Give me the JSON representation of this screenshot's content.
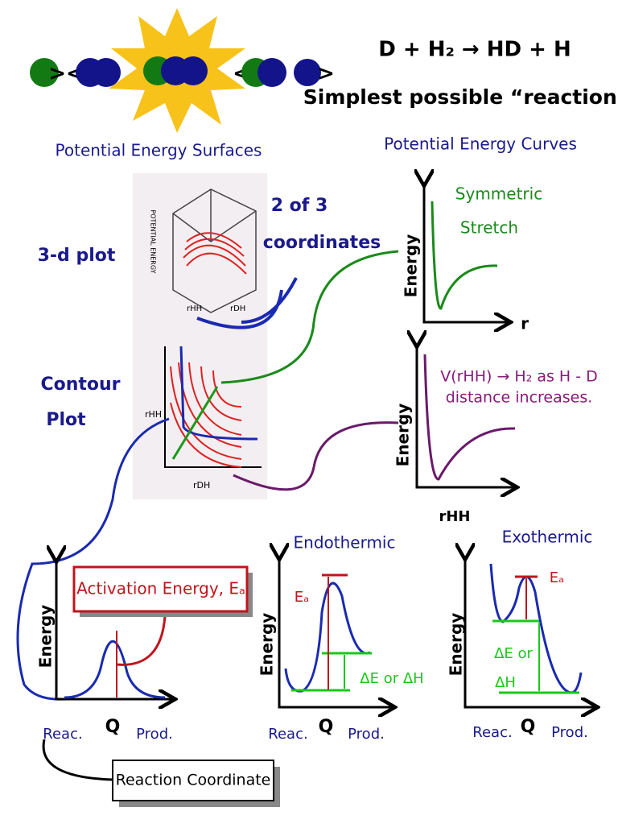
{
  "header": {
    "equation": "D + H₂ → HD + H",
    "subtitle": "Simplest possible “reaction”"
  },
  "surfaces": {
    "title": "Potential Energy Surfaces",
    "plot3d": "3-d plot",
    "coords": [
      "2 of 3",
      "coordinates"
    ],
    "contour": [
      "Contour",
      "Plot"
    ],
    "inner": {
      "z": "POTENTIAL ENERGY",
      "rhh": "rHH",
      "rdh": "rDH",
      "crhh": "rHH",
      "crdh": "rDH"
    }
  },
  "curves": {
    "title": "Potential Energy Curves",
    "top": {
      "y": "Energy",
      "x": "r",
      "label": [
        "Symmetric",
        "Stretch"
      ]
    },
    "mid": {
      "y": "Energy",
      "x": "rHH",
      "label": [
        "V(rHH) → H₂ as H - D",
        "distance increases."
      ]
    }
  },
  "profiles": [
    {
      "y": "Energy",
      "box": "Activation Energy, Eₐ",
      "reac": "Reac.",
      "q": "Q",
      "prod": "Prod."
    },
    {
      "title": "Endothermic",
      "ea": "Eₐ",
      "de": "ΔE or ΔH",
      "y": "Energy",
      "reac": "Reac.",
      "q": "Q",
      "prod": "Prod."
    },
    {
      "title": "Exothermic",
      "ea": "Eₐ",
      "de": [
        "ΔE or",
        "ΔH"
      ],
      "y": "Energy",
      "reac": "Reac.",
      "q": "Q",
      "prod": "Prod."
    }
  ],
  "footer": {
    "label": "Reaction Coordinate"
  }
}
